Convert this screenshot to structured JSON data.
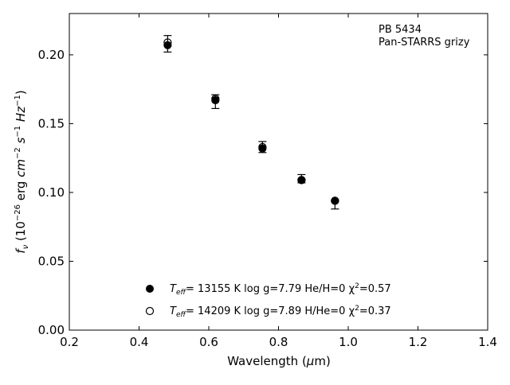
{
  "chart_data": {
    "type": "scatter",
    "xlabel": "Wavelength (μm)",
    "ylabel": "f_ν (10^-26 erg cm^-2 s^-1 Hz^-1)",
    "xlim": [
      0.2,
      1.4
    ],
    "ylim": [
      0.0,
      0.23
    ],
    "x_ticks": [
      "0.2",
      "0.4",
      "0.6",
      "0.8",
      "1.0",
      "1.2",
      "1.4"
    ],
    "y_ticks": [
      "0.00",
      "0.05",
      "0.10",
      "0.15",
      "0.20"
    ],
    "x_tick_values": [
      0.2,
      0.4,
      0.6,
      0.8,
      1.0,
      1.2,
      1.4
    ],
    "y_tick_values": [
      0.0,
      0.05,
      0.1,
      0.15,
      0.2
    ],
    "grid": false,
    "annotation": [
      "PB 5434",
      "Pan-STARRS grizy"
    ],
    "observed": {
      "x": [
        0.482,
        0.619,
        0.754,
        0.866,
        0.962
      ],
      "y": [
        0.208,
        0.166,
        0.133,
        0.11,
        0.091
      ],
      "err": [
        0.006,
        0.005,
        0.004,
        0.003,
        0.003
      ]
    },
    "series": [
      {
        "name": "T_eff= 13155 K  log g=7.79  He/H=0  χ²=0.57",
        "marker": "filled",
        "x": [
          0.482,
          0.619,
          0.754,
          0.866,
          0.962
        ],
        "y": [
          0.207,
          0.167,
          0.132,
          0.109,
          0.094
        ]
      },
      {
        "name": "T_eff= 14209 K  log g=7.89  H/He=0  χ²=0.37",
        "marker": "open",
        "x": [
          0.482,
          0.619,
          0.754,
          0.866,
          0.962
        ],
        "y": [
          0.209,
          0.168,
          0.133,
          0.109,
          0.094
        ]
      }
    ],
    "legend": {
      "placement": "bottom-center",
      "entries": [
        {
          "teff_label": "T",
          "teff_sub": "eff",
          "text": "= 13155 K  log g=7.79  He/H=0  χ",
          "sup": "2",
          "tail": "=0.57"
        },
        {
          "teff_label": "T",
          "teff_sub": "eff",
          "text": "= 14209 K  log g=7.89  H/He=0  χ",
          "sup": "2",
          "tail": "=0.37"
        }
      ]
    }
  }
}
